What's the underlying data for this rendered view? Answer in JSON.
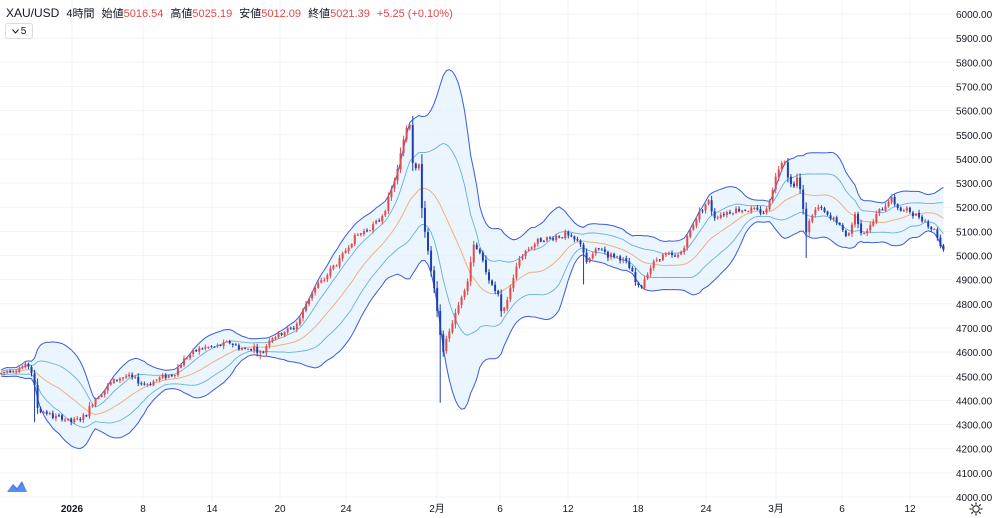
{
  "header": {
    "symbol": "XAU/USD",
    "interval": "4時間",
    "open_label": "始値",
    "open_value": "5016.54",
    "high_label": "高値",
    "high_value": "5025.19",
    "low_label": "安値",
    "low_value": "5012.09",
    "close_label": "終値",
    "close_value": "5021.39",
    "change": "+5.25 (+0.10%)"
  },
  "indicator_chip": {
    "label": "5"
  },
  "icons": {
    "collapse": "chevron-down-icon",
    "logo": "tradingview-logo-icon",
    "settings": "gear-icon"
  },
  "colors": {
    "up": "#e04b4b",
    "down": "#1f3fb0",
    "band_fill": "#e3f2fd",
    "band_outer": "#3b5bdb",
    "band_inner": "#6ab0d8",
    "mid": "#f0b27a"
  },
  "chart_data": {
    "type": "candlestick",
    "ylim": [
      4000,
      6000
    ],
    "y_ticks": [
      "6000.00",
      "5900.00",
      "5800.00",
      "5700.00",
      "5600.00",
      "5500.00",
      "5400.00",
      "5300.00",
      "5200.00",
      "5100.00",
      "5000.00",
      "4900.00",
      "4800.00",
      "4700.00",
      "4600.00",
      "4500.00",
      "4400.00",
      "4300.00",
      "4200.00",
      "4100.00",
      "4000.00"
    ],
    "x_ticks": [
      "2026",
      "8",
      "14",
      "20",
      "24",
      "2月",
      "6",
      "12",
      "18",
      "24",
      "3月",
      "6",
      "12"
    ],
    "price_path": [
      [
        0,
        4510
      ],
      [
        8,
        4525
      ],
      [
        16,
        4530
      ],
      [
        24,
        4540
      ],
      [
        30,
        4545
      ],
      [
        34,
        4470
      ],
      [
        38,
        4360
      ],
      [
        46,
        4350
      ],
      [
        54,
        4330
      ],
      [
        62,
        4330
      ],
      [
        70,
        4310
      ],
      [
        78,
        4320
      ],
      [
        86,
        4340
      ],
      [
        92,
        4390
      ],
      [
        98,
        4420
      ],
      [
        104,
        4440
      ],
      [
        110,
        4470
      ],
      [
        118,
        4490
      ],
      [
        126,
        4500
      ],
      [
        134,
        4490
      ],
      [
        142,
        4470
      ],
      [
        150,
        4470
      ],
      [
        158,
        4490
      ],
      [
        166,
        4500
      ],
      [
        174,
        4510
      ],
      [
        182,
        4560
      ],
      [
        190,
        4590
      ],
      [
        198,
        4610
      ],
      [
        206,
        4620
      ],
      [
        214,
        4620
      ],
      [
        222,
        4630
      ],
      [
        230,
        4640
      ],
      [
        238,
        4620
      ],
      [
        246,
        4610
      ],
      [
        254,
        4620
      ],
      [
        262,
        4590
      ],
      [
        270,
        4660
      ],
      [
        278,
        4670
      ],
      [
        286,
        4690
      ],
      [
        294,
        4700
      ],
      [
        300,
        4740
      ],
      [
        306,
        4800
      ],
      [
        312,
        4850
      ],
      [
        318,
        4880
      ],
      [
        324,
        4900
      ],
      [
        332,
        4950
      ],
      [
        340,
        4980
      ],
      [
        348,
        5040
      ],
      [
        356,
        5080
      ],
      [
        364,
        5100
      ],
      [
        372,
        5120
      ],
      [
        380,
        5150
      ],
      [
        386,
        5200
      ],
      [
        392,
        5280
      ],
      [
        398,
        5360
      ],
      [
        402,
        5450
      ],
      [
        406,
        5530
      ],
      [
        410,
        5550
      ],
      [
        414,
        5320
      ],
      [
        418,
        5430
      ],
      [
        422,
        5180
      ],
      [
        426,
        5080
      ],
      [
        430,
        4960
      ],
      [
        434,
        4860
      ],
      [
        438,
        4740
      ],
      [
        442,
        4600
      ],
      [
        446,
        4640
      ],
      [
        450,
        4700
      ],
      [
        456,
        4760
      ],
      [
        462,
        4840
      ],
      [
        468,
        4900
      ],
      [
        474,
        5060
      ],
      [
        480,
        5000
      ],
      [
        486,
        4940
      ],
      [
        492,
        4870
      ],
      [
        498,
        4840
      ],
      [
        502,
        4740
      ],
      [
        506,
        4800
      ],
      [
        510,
        4860
      ],
      [
        514,
        4920
      ],
      [
        520,
        4990
      ],
      [
        526,
        5020
      ],
      [
        532,
        5040
      ],
      [
        538,
        5060
      ],
      [
        544,
        5070
      ],
      [
        550,
        5070
      ],
      [
        556,
        5080
      ],
      [
        562,
        5080
      ],
      [
        566,
        5090
      ],
      [
        570,
        5070
      ],
      [
        576,
        5060
      ],
      [
        582,
        5050
      ],
      [
        586,
        4960
      ],
      [
        590,
        4990
      ],
      [
        596,
        5020
      ],
      [
        602,
        5030
      ],
      [
        608,
        5000
      ],
      [
        614,
        5000
      ],
      [
        620,
        4990
      ],
      [
        626,
        4970
      ],
      [
        632,
        4930
      ],
      [
        636,
        4880
      ],
      [
        640,
        4860
      ],
      [
        646,
        4920
      ],
      [
        652,
        4960
      ],
      [
        658,
        4990
      ],
      [
        664,
        5000
      ],
      [
        670,
        5000
      ],
      [
        676,
        4990
      ],
      [
        682,
        5020
      ],
      [
        688,
        5080
      ],
      [
        692,
        5120
      ],
      [
        698,
        5170
      ],
      [
        704,
        5200
      ],
      [
        708,
        5230
      ],
      [
        714,
        5160
      ],
      [
        720,
        5170
      ],
      [
        728,
        5180
      ],
      [
        736,
        5190
      ],
      [
        744,
        5190
      ],
      [
        752,
        5190
      ],
      [
        760,
        5180
      ],
      [
        766,
        5180
      ],
      [
        770,
        5240
      ],
      [
        774,
        5300
      ],
      [
        780,
        5380
      ],
      [
        784,
        5410
      ],
      [
        788,
        5330
      ],
      [
        792,
        5280
      ],
      [
        798,
        5330
      ],
      [
        802,
        5220
      ],
      [
        806,
        5100
      ],
      [
        812,
        5170
      ],
      [
        818,
        5200
      ],
      [
        824,
        5180
      ],
      [
        830,
        5150
      ],
      [
        836,
        5150
      ],
      [
        842,
        5100
      ],
      [
        848,
        5080
      ],
      [
        852,
        5130
      ],
      [
        856,
        5180
      ],
      [
        860,
        5100
      ],
      [
        866,
        5100
      ],
      [
        872,
        5130
      ],
      [
        878,
        5180
      ],
      [
        884,
        5200
      ],
      [
        890,
        5240
      ],
      [
        896,
        5210
      ],
      [
        902,
        5180
      ],
      [
        908,
        5190
      ],
      [
        914,
        5170
      ],
      [
        920,
        5160
      ],
      [
        926,
        5140
      ],
      [
        932,
        5110
      ],
      [
        936,
        5100
      ],
      [
        940,
        5040
      ],
      [
        944,
        5030
      ]
    ]
  }
}
